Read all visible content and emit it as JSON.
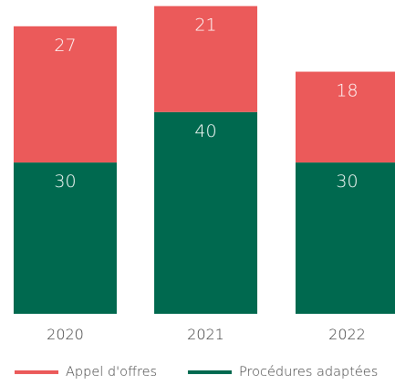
{
  "chart_data": {
    "type": "bar",
    "stacked": true,
    "categories": [
      "2020",
      "2021",
      "2022"
    ],
    "series": [
      {
        "name": "Procédures adaptées",
        "values": [
          30,
          40,
          30
        ],
        "color": "#00694f"
      },
      {
        "name": "Appel d'offres",
        "values": [
          27,
          21,
          18
        ],
        "color": "#eb5a5a"
      }
    ],
    "ylim": [
      0,
      61
    ],
    "grid": false,
    "legend": "bottom"
  },
  "legend": {
    "items": [
      {
        "label": "Appel d'offres",
        "color": "#eb5a5a"
      },
      {
        "label": "Procédures adaptées",
        "color": "#00694f"
      }
    ]
  }
}
